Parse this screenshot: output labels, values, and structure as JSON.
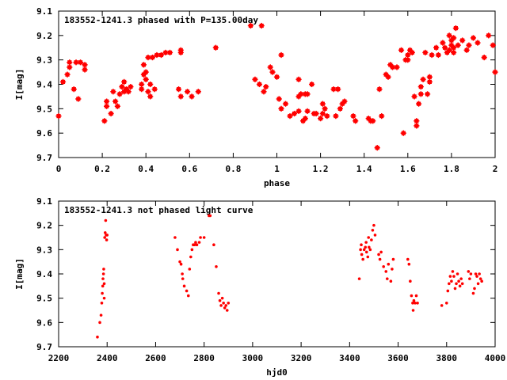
{
  "chart_data": [
    {
      "type": "scatter",
      "title": "183552-1241.3 phased with P=135.00day",
      "xlabel": "phase",
      "ylabel": "I[mag]",
      "xlim": [
        0,
        2
      ],
      "ylim": [
        9.7,
        9.1
      ],
      "y_inverted": true,
      "xticks": [
        "0",
        "0.2",
        "0.4",
        "0.6",
        "0.8",
        "1",
        "1.2",
        "1.4",
        "1.6",
        "1.8",
        "2"
      ],
      "yticks": [
        "9.1",
        "9.2",
        "9.3",
        "9.4",
        "9.5",
        "9.6",
        "9.7"
      ],
      "marker_color": "#ff0000",
      "grid": false,
      "points": [
        [
          0.0,
          9.53
        ],
        [
          0.02,
          9.39
        ],
        [
          0.04,
          9.36
        ],
        [
          0.05,
          9.31
        ],
        [
          0.05,
          9.33
        ],
        [
          0.07,
          9.42
        ],
        [
          0.08,
          9.31
        ],
        [
          0.09,
          9.46
        ],
        [
          0.1,
          9.31
        ],
        [
          0.12,
          9.32
        ],
        [
          0.12,
          9.34
        ],
        [
          0.21,
          9.55
        ],
        [
          0.22,
          9.47
        ],
        [
          0.22,
          9.49
        ],
        [
          0.24,
          9.52
        ],
        [
          0.25,
          9.43
        ],
        [
          0.26,
          9.47
        ],
        [
          0.27,
          9.49
        ],
        [
          0.28,
          9.44
        ],
        [
          0.29,
          9.41
        ],
        [
          0.3,
          9.43
        ],
        [
          0.3,
          9.39
        ],
        [
          0.31,
          9.42
        ],
        [
          0.32,
          9.43
        ],
        [
          0.33,
          9.41
        ],
        [
          0.38,
          9.4
        ],
        [
          0.38,
          9.42
        ],
        [
          0.39,
          9.36
        ],
        [
          0.39,
          9.32
        ],
        [
          0.4,
          9.35
        ],
        [
          0.4,
          9.38
        ],
        [
          0.41,
          9.29
        ],
        [
          0.41,
          9.43
        ],
        [
          0.42,
          9.4
        ],
        [
          0.42,
          9.45
        ],
        [
          0.43,
          9.29
        ],
        [
          0.44,
          9.42
        ],
        [
          0.45,
          9.28
        ],
        [
          0.47,
          9.28
        ],
        [
          0.49,
          9.27
        ],
        [
          0.51,
          9.27
        ],
        [
          0.55,
          9.42
        ],
        [
          0.56,
          9.26
        ],
        [
          0.56,
          9.27
        ],
        [
          0.56,
          9.45
        ],
        [
          0.59,
          9.43
        ],
        [
          0.61,
          9.45
        ],
        [
          0.64,
          9.43
        ],
        [
          0.72,
          9.25
        ],
        [
          0.88,
          9.16
        ],
        [
          0.9,
          9.38
        ],
        [
          0.92,
          9.4
        ],
        [
          0.93,
          9.16
        ],
        [
          0.94,
          9.43
        ],
        [
          0.95,
          9.41
        ],
        [
          0.97,
          9.33
        ],
        [
          0.98,
          9.35
        ],
        [
          1.0,
          9.37
        ],
        [
          1.01,
          9.46
        ],
        [
          1.02,
          9.28
        ],
        [
          1.02,
          9.5
        ],
        [
          1.04,
          9.48
        ],
        [
          1.06,
          9.53
        ],
        [
          1.08,
          9.52
        ],
        [
          1.1,
          9.45
        ],
        [
          1.1,
          9.38
        ],
        [
          1.1,
          9.51
        ],
        [
          1.11,
          9.44
        ],
        [
          1.12,
          9.55
        ],
        [
          1.13,
          9.44
        ],
        [
          1.13,
          9.54
        ],
        [
          1.14,
          9.44
        ],
        [
          1.14,
          9.51
        ],
        [
          1.16,
          9.4
        ],
        [
          1.17,
          9.52
        ],
        [
          1.18,
          9.52
        ],
        [
          1.2,
          9.54
        ],
        [
          1.21,
          9.48
        ],
        [
          1.21,
          9.52
        ],
        [
          1.22,
          9.5
        ],
        [
          1.23,
          9.53
        ],
        [
          1.26,
          9.42
        ],
        [
          1.27,
          9.53
        ],
        [
          1.28,
          9.42
        ],
        [
          1.29,
          9.5
        ],
        [
          1.3,
          9.48
        ],
        [
          1.31,
          9.47
        ],
        [
          1.35,
          9.53
        ],
        [
          1.36,
          9.55
        ],
        [
          1.42,
          9.54
        ],
        [
          1.43,
          9.55
        ],
        [
          1.44,
          9.55
        ],
        [
          1.46,
          9.66
        ],
        [
          1.47,
          9.42
        ],
        [
          1.48,
          9.53
        ],
        [
          1.5,
          9.36
        ],
        [
          1.51,
          9.37
        ],
        [
          1.52,
          9.32
        ],
        [
          1.53,
          9.33
        ],
        [
          1.55,
          9.33
        ],
        [
          1.57,
          9.26
        ],
        [
          1.58,
          9.6
        ],
        [
          1.59,
          9.3
        ],
        [
          1.6,
          9.28
        ],
        [
          1.6,
          9.3
        ],
        [
          1.61,
          9.26
        ],
        [
          1.62,
          9.27
        ],
        [
          1.63,
          9.45
        ],
        [
          1.64,
          9.57
        ],
        [
          1.64,
          9.55
        ],
        [
          1.65,
          9.48
        ],
        [
          1.66,
          9.41
        ],
        [
          1.66,
          9.44
        ],
        [
          1.67,
          9.38
        ],
        [
          1.68,
          9.27
        ],
        [
          1.69,
          9.44
        ],
        [
          1.7,
          9.37
        ],
        [
          1.7,
          9.39
        ],
        [
          1.71,
          9.28
        ],
        [
          1.73,
          9.25
        ],
        [
          1.74,
          9.28
        ],
        [
          1.76,
          9.23
        ],
        [
          1.77,
          9.25
        ],
        [
          1.78,
          9.27
        ],
        [
          1.79,
          9.2
        ],
        [
          1.79,
          9.26
        ],
        [
          1.8,
          9.22
        ],
        [
          1.8,
          9.24
        ],
        [
          1.81,
          9.21
        ],
        [
          1.81,
          9.27
        ],
        [
          1.81,
          9.25
        ],
        [
          1.82,
          9.17
        ],
        [
          1.83,
          9.24
        ],
        [
          1.85,
          9.22
        ],
        [
          1.87,
          9.26
        ],
        [
          1.88,
          9.24
        ],
        [
          1.9,
          9.21
        ],
        [
          1.92,
          9.23
        ],
        [
          1.95,
          9.29
        ],
        [
          1.97,
          9.2
        ],
        [
          1.99,
          9.24
        ],
        [
          2.0,
          9.35
        ]
      ]
    },
    {
      "type": "scatter",
      "title": "183552-1241.3 not phased light curve",
      "xlabel": "hjd0",
      "ylabel": "I[mag]",
      "xlim": [
        2200,
        4000
      ],
      "ylim": [
        9.7,
        9.1
      ],
      "y_inverted": true,
      "xticks": [
        "2200",
        "2400",
        "2600",
        "2800",
        "3000",
        "3200",
        "3400",
        "3600",
        "3800",
        "4000"
      ],
      "yticks": [
        "9.1",
        "9.2",
        "9.3",
        "9.4",
        "9.5",
        "9.6",
        "9.7"
      ],
      "marker_color": "#ff0000",
      "grid": false,
      "points": [
        [
          2360,
          9.66
        ],
        [
          2370,
          9.6
        ],
        [
          2375,
          9.57
        ],
        [
          2378,
          9.52
        ],
        [
          2380,
          9.48
        ],
        [
          2382,
          9.45
        ],
        [
          2383,
          9.42
        ],
        [
          2385,
          9.4
        ],
        [
          2386,
          9.38
        ],
        [
          2388,
          9.44
        ],
        [
          2388,
          9.5
        ],
        [
          2390,
          9.25
        ],
        [
          2392,
          9.23
        ],
        [
          2394,
          9.18
        ],
        [
          2396,
          9.24
        ],
        [
          2398,
          9.26
        ],
        [
          2400,
          9.24
        ],
        [
          2680,
          9.25
        ],
        [
          2690,
          9.3
        ],
        [
          2700,
          9.35
        ],
        [
          2705,
          9.36
        ],
        [
          2710,
          9.4
        ],
        [
          2712,
          9.42
        ],
        [
          2718,
          9.45
        ],
        [
          2728,
          9.47
        ],
        [
          2735,
          9.49
        ],
        [
          2740,
          9.38
        ],
        [
          2745,
          9.33
        ],
        [
          2750,
          9.3
        ],
        [
          2755,
          9.28
        ],
        [
          2760,
          9.28
        ],
        [
          2765,
          9.27
        ],
        [
          2770,
          9.28
        ],
        [
          2780,
          9.27
        ],
        [
          2785,
          9.25
        ],
        [
          2800,
          9.25
        ],
        [
          2820,
          9.16
        ],
        [
          2825,
          9.16
        ],
        [
          2840,
          9.28
        ],
        [
          2850,
          9.37
        ],
        [
          2860,
          9.48
        ],
        [
          2865,
          9.51
        ],
        [
          2870,
          9.53
        ],
        [
          2875,
          9.5
        ],
        [
          2880,
          9.52
        ],
        [
          2885,
          9.54
        ],
        [
          2890,
          9.53
        ],
        [
          2895,
          9.55
        ],
        [
          2900,
          9.52
        ],
        [
          3440,
          9.42
        ],
        [
          3445,
          9.3
        ],
        [
          3448,
          9.28
        ],
        [
          3450,
          9.32
        ],
        [
          3455,
          9.34
        ],
        [
          3460,
          9.3
        ],
        [
          3465,
          9.29
        ],
        [
          3468,
          9.27
        ],
        [
          3470,
          9.31
        ],
        [
          3475,
          9.33
        ],
        [
          3478,
          9.25
        ],
        [
          3480,
          9.29
        ],
        [
          3485,
          9.3
        ],
        [
          3490,
          9.26
        ],
        [
          3495,
          9.22
        ],
        [
          3500,
          9.2
        ],
        [
          3505,
          9.24
        ],
        [
          3520,
          9.32
        ],
        [
          3525,
          9.34
        ],
        [
          3530,
          9.31
        ],
        [
          3540,
          9.37
        ],
        [
          3550,
          9.39
        ],
        [
          3555,
          9.42
        ],
        [
          3560,
          9.36
        ],
        [
          3570,
          9.43
        ],
        [
          3575,
          9.38
        ],
        [
          3580,
          9.34
        ],
        [
          3640,
          9.34
        ],
        [
          3645,
          9.36
        ],
        [
          3650,
          9.43
        ],
        [
          3655,
          9.49
        ],
        [
          3660,
          9.52
        ],
        [
          3662,
          9.55
        ],
        [
          3665,
          9.51
        ],
        [
          3670,
          9.52
        ],
        [
          3675,
          9.49
        ],
        [
          3680,
          9.52
        ],
        [
          3780,
          9.53
        ],
        [
          3800,
          9.52
        ],
        [
          3805,
          9.47
        ],
        [
          3810,
          9.44
        ],
        [
          3815,
          9.41
        ],
        [
          3820,
          9.43
        ],
        [
          3825,
          9.39
        ],
        [
          3830,
          9.41
        ],
        [
          3835,
          9.46
        ],
        [
          3840,
          9.44
        ],
        [
          3845,
          9.4
        ],
        [
          3850,
          9.43
        ],
        [
          3855,
          9.45
        ],
        [
          3860,
          9.42
        ],
        [
          3865,
          9.44
        ],
        [
          3890,
          9.39
        ],
        [
          3895,
          9.42
        ],
        [
          3900,
          9.4
        ],
        [
          3910,
          9.48
        ],
        [
          3915,
          9.46
        ],
        [
          3920,
          9.4
        ],
        [
          3925,
          9.41
        ],
        [
          3930,
          9.44
        ],
        [
          3935,
          9.4
        ],
        [
          3940,
          9.42
        ],
        [
          3945,
          9.43
        ]
      ]
    }
  ]
}
